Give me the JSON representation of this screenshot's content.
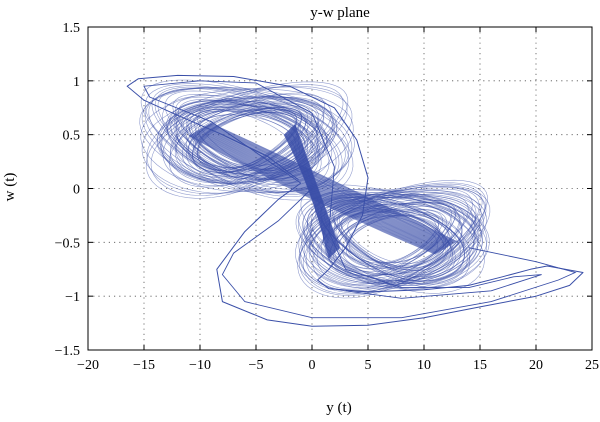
{
  "chart_data": {
    "type": "line",
    "title": "y-w plane",
    "xlabel": "y (t)",
    "ylabel": "w (t)",
    "xlim": [
      -20,
      25
    ],
    "ylim": [
      -1.5,
      1.5
    ],
    "x_ticks": [
      -20,
      -15,
      -10,
      -5,
      0,
      5,
      10,
      15,
      20,
      25
    ],
    "y_ticks": [
      -1.5,
      -1,
      -0.5,
      0,
      0.5,
      1,
      1.5
    ],
    "x_tick_labels": [
      "−20",
      "−15",
      "−10",
      "−5",
      "0",
      "5",
      "10",
      "15",
      "20",
      "25"
    ],
    "y_tick_labels": [
      "−1.5",
      "−1",
      "−0.5",
      "0",
      "0.5",
      "1",
      "1.5"
    ],
    "grid": "dotted",
    "line_color": "#3a4fa8",
    "series": [
      {
        "description_points": "outer excursion loops of the double-scroll attractor",
        "x": [
          -1.2,
          -4,
          -8,
          -12,
          -15,
          -16.5,
          -15.5,
          -12,
          -7,
          -2,
          2,
          4,
          5,
          4.5,
          3,
          1.5,
          0.5,
          1.5,
          5,
          10,
          14,
          17,
          19.5,
          21,
          24.2,
          23,
          20,
          15,
          10,
          5,
          0,
          -4,
          -8,
          -8.5,
          -6,
          -3,
          -1
        ],
        "y": [
          0.08,
          0.3,
          0.5,
          0.68,
          0.82,
          0.95,
          1.02,
          1.05,
          1.04,
          0.95,
          0.75,
          0.45,
          0.1,
          -0.25,
          -0.55,
          -0.75,
          -0.85,
          -0.93,
          -0.96,
          -0.94,
          -0.9,
          -0.82,
          -0.75,
          -0.72,
          -0.78,
          -0.9,
          -1.0,
          -1.1,
          -1.2,
          -1.27,
          -1.28,
          -1.22,
          -1.05,
          -0.75,
          -0.4,
          -0.1,
          0.05
        ]
      }
    ]
  }
}
